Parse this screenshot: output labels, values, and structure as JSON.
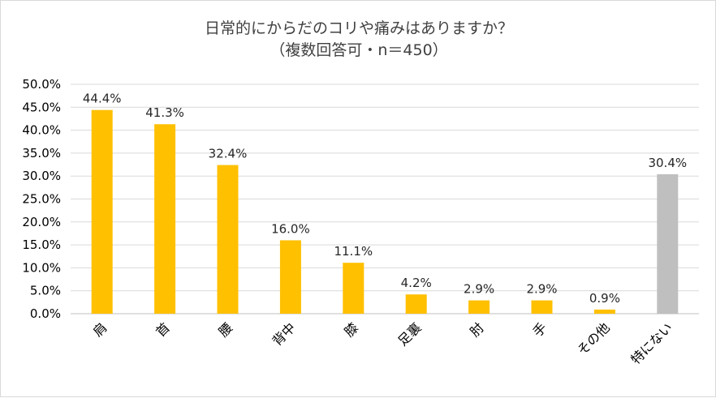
{
  "chart_data": {
    "type": "bar",
    "title": "日常的にからだのコリや痛みはありますか？",
    "subtitle": "（複数回答可・n＝450）",
    "categories": [
      "肩",
      "首",
      "腰",
      "背中",
      "膝",
      "足裏",
      "肘",
      "手",
      "その他",
      "特にない"
    ],
    "values": [
      44.4,
      41.3,
      32.4,
      16.0,
      11.1,
      4.2,
      2.9,
      2.9,
      0.9,
      30.4
    ],
    "data_labels": [
      "44.4%",
      "41.3%",
      "32.4%",
      "16.0%",
      "11.1%",
      "4.2%",
      "2.9%",
      "2.9%",
      "0.9%",
      "30.4%"
    ],
    "y_ticks": [
      "0.0%",
      "5.0%",
      "10.0%",
      "15.0%",
      "20.0%",
      "25.0%",
      "30.0%",
      "35.0%",
      "40.0%",
      "45.0%",
      "50.0%"
    ],
    "ylim": [
      0,
      50
    ],
    "y_step": 5,
    "grid": true,
    "legend": "none",
    "colors": {
      "bar": "#FFC000",
      "highlight_bar": "#BFBFBF",
      "grid": "#D9D9D9",
      "axis": "#BFBFBF"
    },
    "highlight_index": 9
  }
}
